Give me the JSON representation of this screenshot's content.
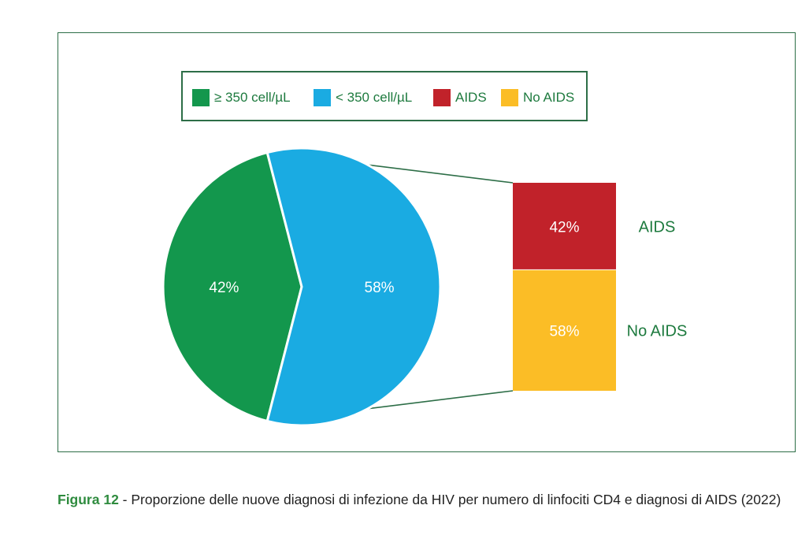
{
  "chart_data": {
    "type": "pie",
    "pie": {
      "slices": [
        {
          "label": "≥ 350 cell/µL",
          "value": 42,
          "display": "42%",
          "color": "#13974d"
        },
        {
          "label": "< 350 cell/µL",
          "value": 58,
          "display": "58%",
          "color": "#1aabe2"
        }
      ]
    },
    "breakdown_of": "< 350 cell/µL",
    "breakdown_bar": {
      "segments": [
        {
          "label": "AIDS",
          "value": 42,
          "display": "42%",
          "color": "#c1222a"
        },
        {
          "label": "No AIDS",
          "value": 58,
          "display": "58%",
          "color": "#fbbd26"
        }
      ]
    },
    "legend": [
      {
        "label": "≥ 350 cell/µL",
        "color": "#13974d"
      },
      {
        "label": "< 350 cell/µL",
        "color": "#1aabe2"
      },
      {
        "label": "AIDS",
        "color": "#c1222a"
      },
      {
        "label": "No AIDS",
        "color": "#fbbd26"
      }
    ],
    "legend_position": "top"
  },
  "caption": {
    "figure": "Figura 12",
    "text": " - Proporzione delle nuove diagnosi di infezione da HIV per numero di linfociti CD4 e diagnosi di AIDS (2022)"
  },
  "colors": {
    "frame": "#2d6e47",
    "connector": "#2d6e47"
  }
}
